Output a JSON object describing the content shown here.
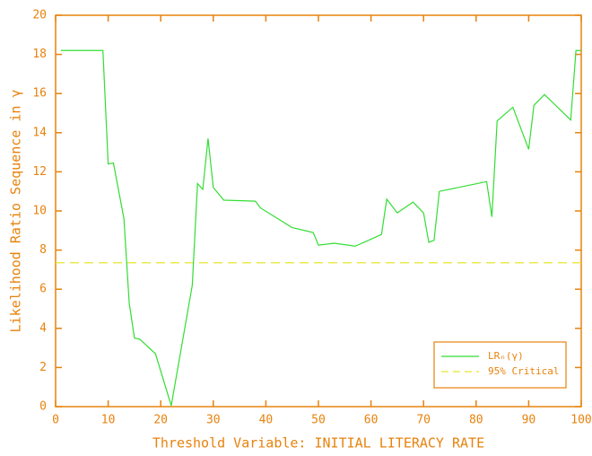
{
  "chart_data": {
    "type": "line",
    "xlabel": "Threshold Variable: INITIAL LITERACY RATE",
    "ylabel": "Likelihood Ratio Sequence in γ",
    "xlim": [
      0,
      100
    ],
    "xticks": [
      0,
      10,
      20,
      30,
      40,
      50,
      60,
      70,
      80,
      90,
      100
    ],
    "ylim": [
      0,
      20
    ],
    "yticks": [
      0,
      2,
      4,
      6,
      8,
      10,
      12,
      14,
      16,
      18,
      20
    ],
    "axis_color": "#e8820c",
    "legend": "lower right",
    "series": [
      {
        "name": "LRₙ(γ)",
        "color": "#33dd33",
        "x": [
          1,
          9,
          10,
          11,
          13,
          14,
          15,
          16,
          19,
          22,
          26,
          27,
          28,
          29,
          30,
          32,
          38,
          39,
          45,
          49,
          50,
          53,
          57,
          62,
          63,
          65,
          68,
          70,
          71,
          72,
          73,
          82,
          83,
          84,
          87,
          90,
          91,
          93,
          98,
          99,
          100
        ],
        "values": [
          18.2,
          18.2,
          12.4,
          12.45,
          9.6,
          5.3,
          3.5,
          3.45,
          2.7,
          0.05,
          6.2,
          11.4,
          11.1,
          13.7,
          11.2,
          10.55,
          10.5,
          10.15,
          9.15,
          8.9,
          8.25,
          8.35,
          8.2,
          8.8,
          10.6,
          9.9,
          10.45,
          9.9,
          8.4,
          8.5,
          11.0,
          11.5,
          9.7,
          14.6,
          15.3,
          13.15,
          15.4,
          15.95,
          14.65,
          18.2,
          18.2
        ]
      }
    ],
    "hlines": [
      {
        "name": "95% Critical",
        "color": "#e6e62e",
        "value": 7.35
      }
    ]
  }
}
